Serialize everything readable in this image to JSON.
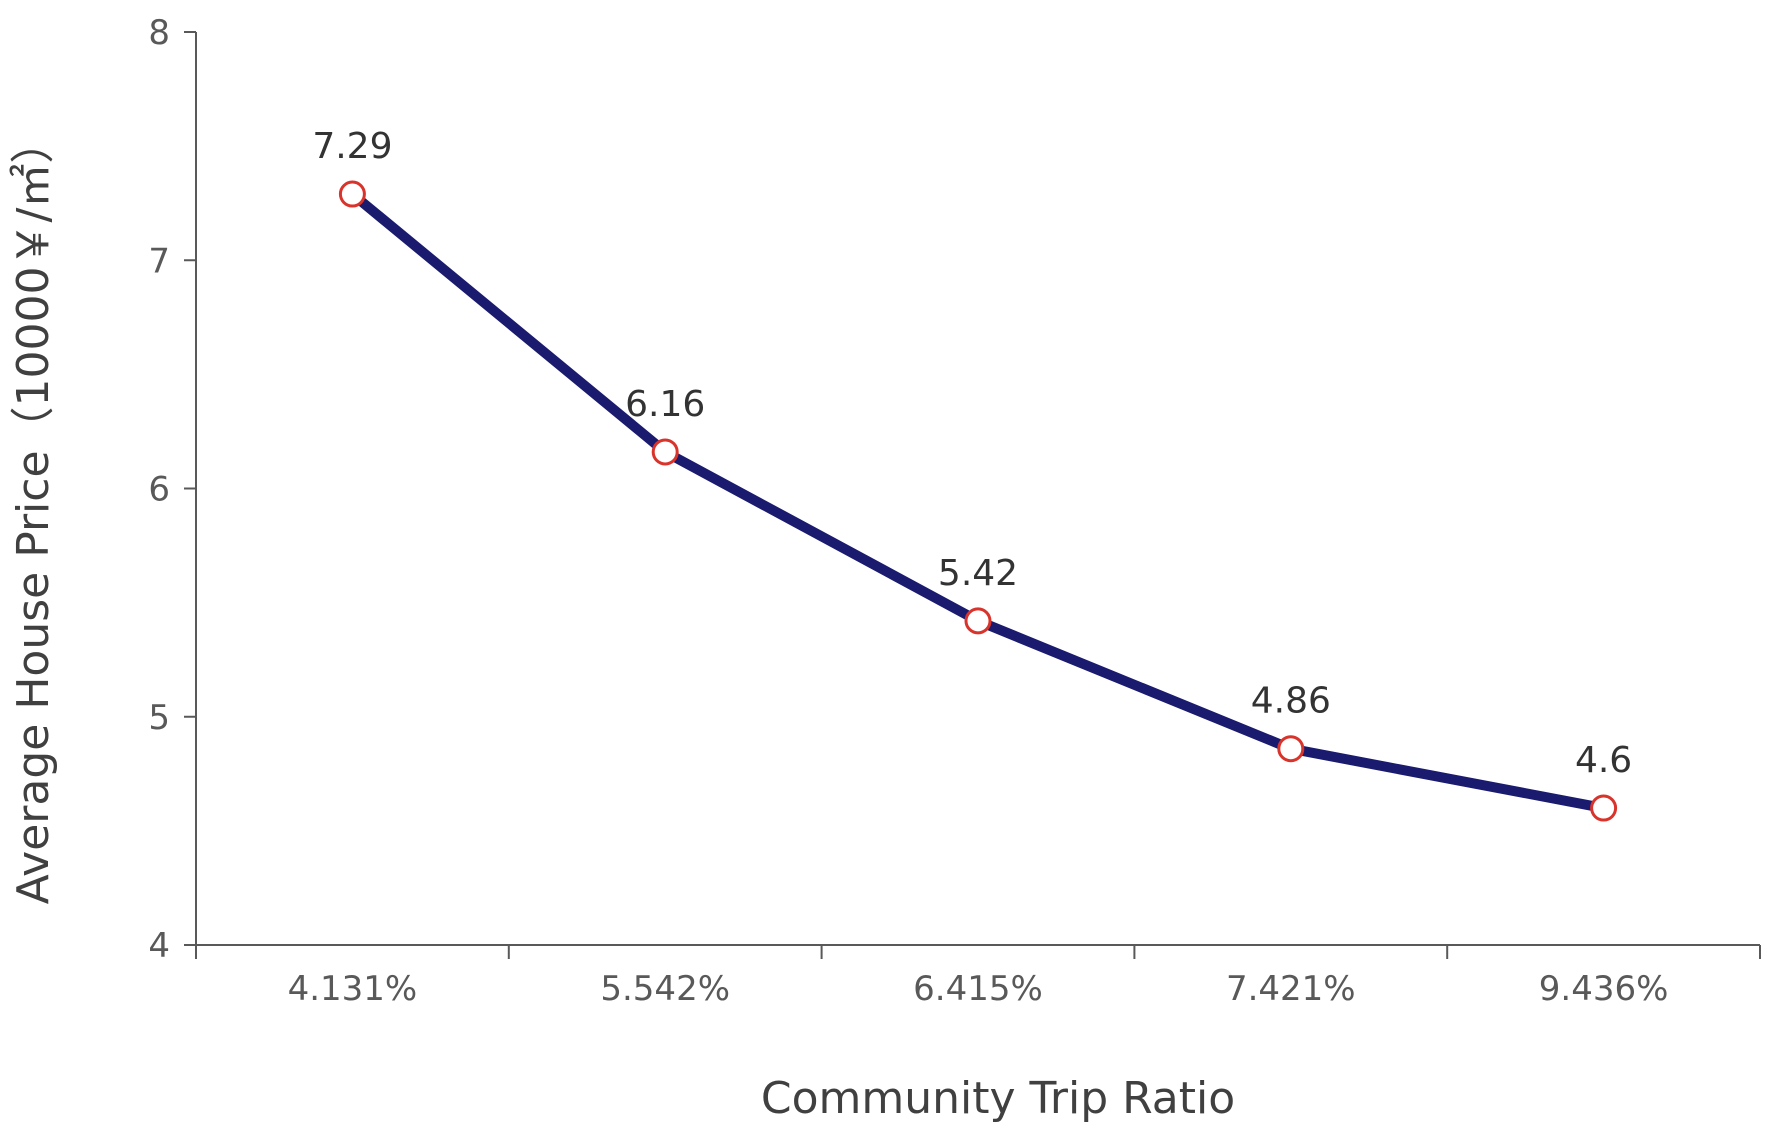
{
  "chart_data": {
    "type": "line",
    "title": "",
    "xlabel": "Community Trip Ratio",
    "ylabel": "Average House Price（10000￥/㎡）",
    "categories": [
      "4.131%",
      "5.542%",
      "6.415%",
      "7.421%",
      "9.436%"
    ],
    "series": [
      {
        "values": [
          7.29,
          6.16,
          5.42,
          4.86,
          4.6
        ],
        "data_labels": [
          "7.29",
          "6.16",
          "5.42",
          "4.86",
          "4.6"
        ]
      }
    ],
    "ylim": [
      4,
      8
    ],
    "yticks": [
      4,
      5,
      6,
      7,
      8
    ],
    "ytick_labels": [
      "4",
      "5",
      "6",
      "7",
      "8"
    ],
    "grid": false,
    "legend": "none",
    "colors": {
      "line": "#1a1a6e",
      "marker_stroke": "#d9342b",
      "marker_fill": "#ffffff",
      "axis": "#595959"
    }
  }
}
